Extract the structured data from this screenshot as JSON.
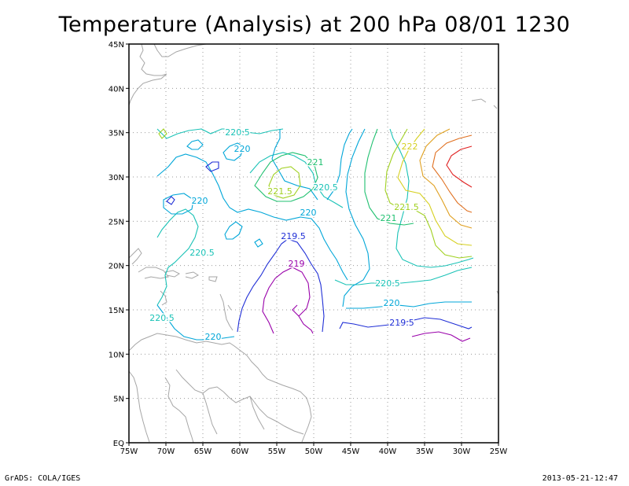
{
  "title": "Temperature (Analysis) at 200 hPa 08/01 1230",
  "footer": {
    "software": "GrADS: COLA/IGES",
    "timestamp": "2013-05-21-12:47"
  },
  "map": {
    "lon_range": [
      -75,
      -25
    ],
    "lat_range": [
      0,
      45
    ],
    "x_tick_labels": [
      "75W",
      "70W",
      "65W",
      "60W",
      "55W",
      "50W",
      "45W",
      "40W",
      "35W",
      "30W",
      "25W"
    ],
    "y_tick_labels": [
      "EQ",
      "5N",
      "10N",
      "15N",
      "20N",
      "25N",
      "30N",
      "35N",
      "40N",
      "45N"
    ],
    "grid": "dotted"
  },
  "contour_levels": [
    {
      "value": "219",
      "color": "#9900aa"
    },
    {
      "value": "219.5",
      "color": "#1f2ed6"
    },
    {
      "value": "220",
      "color": "#00a6d8"
    },
    {
      "value": "220.5",
      "color": "#19c2b6"
    },
    {
      "value": "221",
      "color": "#20c070"
    },
    {
      "value": "221.5",
      "color": "#a0d020"
    },
    {
      "value": "222",
      "color": "#d6d020"
    },
    {
      "value": "222.5",
      "color": "#e0a020"
    },
    {
      "value": "223",
      "color": "#e07020"
    },
    {
      "value": "223.5",
      "color": "#e02020"
    }
  ],
  "contour_labels": [
    {
      "text": "220.5",
      "level": "220.5"
    },
    {
      "text": "220",
      "level": "220"
    },
    {
      "text": "221",
      "level": "221"
    },
    {
      "text": "222",
      "level": "222"
    },
    {
      "text": "221.5",
      "level": "221.5"
    },
    {
      "text": "220.5",
      "level": "220.5"
    },
    {
      "text": "221.5",
      "level": "221.5"
    },
    {
      "text": "220",
      "level": "220"
    },
    {
      "text": "220",
      "level": "220"
    },
    {
      "text": "221",
      "level": "221"
    },
    {
      "text": "219.5",
      "level": "219.5"
    },
    {
      "text": "220.5",
      "level": "220.5"
    },
    {
      "text": "219",
      "level": "219"
    },
    {
      "text": "220.5",
      "level": "220.5"
    },
    {
      "text": "220",
      "level": "220"
    },
    {
      "text": "220.5",
      "level": "220.5"
    },
    {
      "text": "219.5",
      "level": "219.5"
    },
    {
      "text": "220",
      "level": "220"
    }
  ]
}
